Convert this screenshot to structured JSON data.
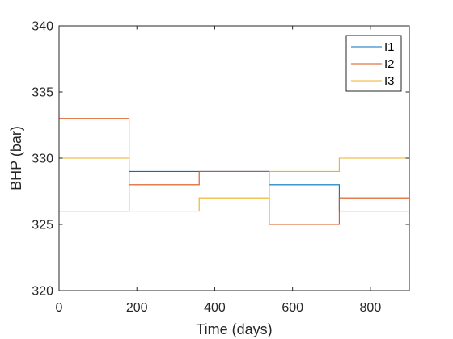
{
  "chart_data": {
    "type": "line",
    "xlabel": "Time (days)",
    "ylabel": "BHP (bar)",
    "xlim": [
      0,
      900
    ],
    "ylim": [
      320,
      340
    ],
    "xticks": [
      0,
      200,
      400,
      600,
      800
    ],
    "yticks": [
      320,
      325,
      330,
      335,
      340
    ],
    "grid": false,
    "legend_position": "top-right",
    "series": [
      {
        "name": "I1",
        "color": "#0072BD",
        "x": [
          0,
          180,
          180,
          360,
          360,
          540,
          540,
          720,
          720,
          900
        ],
        "y": [
          326,
          326,
          329,
          329,
          329,
          329,
          328,
          328,
          326,
          326
        ]
      },
      {
        "name": "I2",
        "color": "#D95319",
        "x": [
          0,
          180,
          180,
          360,
          360,
          540,
          540,
          720,
          720,
          900
        ],
        "y": [
          333,
          333,
          328,
          328,
          329,
          329,
          325,
          325,
          327,
          327
        ]
      },
      {
        "name": "I3",
        "color": "#EDB120",
        "x": [
          0,
          180,
          180,
          360,
          360,
          540,
          540,
          720,
          720,
          900
        ],
        "y": [
          330,
          330,
          326,
          326,
          327,
          327,
          329,
          329,
          330,
          330
        ]
      }
    ]
  }
}
